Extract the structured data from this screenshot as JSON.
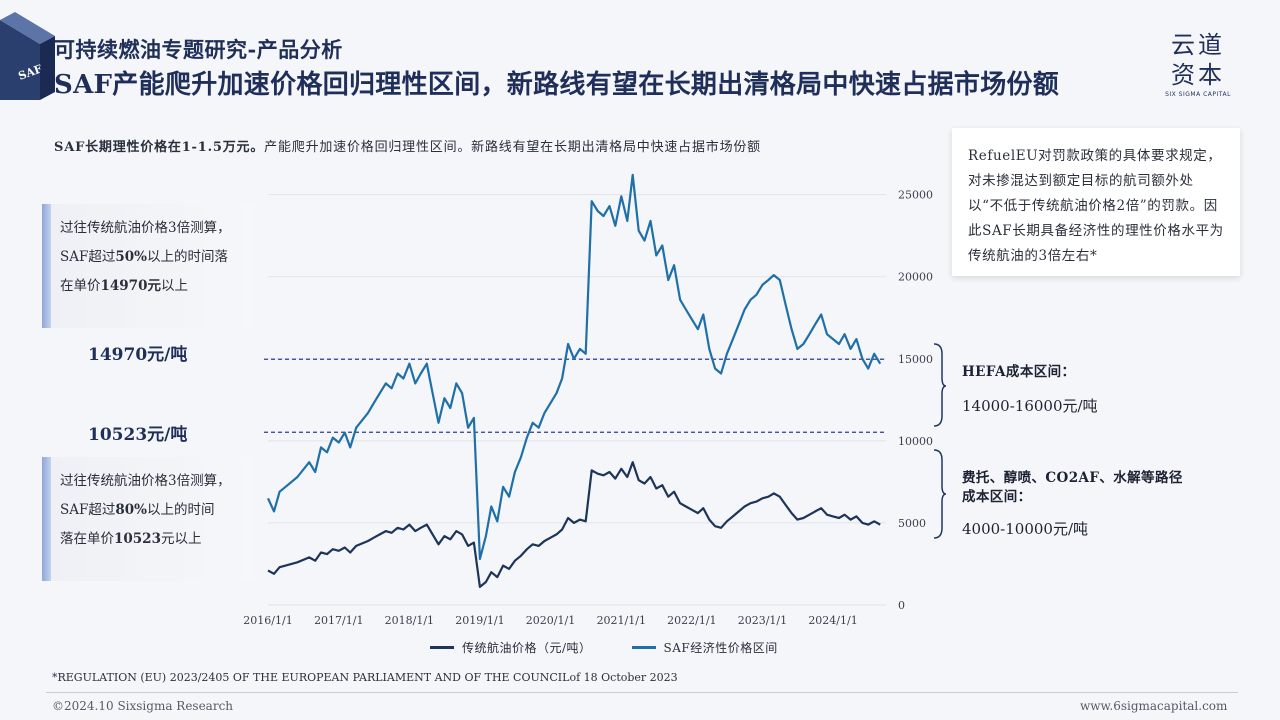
{
  "header": {
    "subtitle": "可持续燃油专题研究-产品分析",
    "title": "SAF产能爬升加速价格回归理性区间，新路线有望在长期出清格局中快速占据市场份额",
    "corner_text": "SAF"
  },
  "logo": {
    "line1": "云道",
    "line2": "资本",
    "tagline": "SIX SIGMA CAPITAL"
  },
  "lead": {
    "bold": "SAF长期理性价格在1-1.5万元。",
    "rest": "产能爬升加速价格回归理性区间。新路线有望在长期出清格局中快速占据市场份额"
  },
  "note": {
    "text": "RefuelEU对罚款政策的具体要求规定，对未掺混达到额定目标的航司额外处以“不低于传统航油价格2倍”的罚款。因此SAF长期具备经济性的理性价格水平为传统航油的3倍左右*"
  },
  "left_box_1": {
    "line1": "过往传统航油价格3倍测算，",
    "line2_a": "SAF超过",
    "line2_b": "50%",
    "line2_c": "以上的时间落",
    "line3_a": "在单价",
    "line3_b": "14970元",
    "line3_c": "以上"
  },
  "left_box_2": {
    "line1": "过往传统航油价格3倍测算，",
    "line2_a": "SAF超过",
    "line2_b": "80%",
    "line2_c": "以上的时间",
    "line3_a": "落在单价",
    "line3_b": "10523",
    "line3_c": "元以上"
  },
  "price_label_1": "14970元/吨",
  "price_label_2": "10523元/吨",
  "bracket_hefa": {
    "title": "HEFA成本区间：",
    "range": "14000-16000元/吨"
  },
  "bracket_other": {
    "title_line1": "费托、醇喷、CO2AF、水解等路径",
    "title_line2": "成本区间：",
    "range": "4000-10000元/吨"
  },
  "legend": {
    "series1": "传统航油价格（元/吨）",
    "series2": "SAF经济性价格区间"
  },
  "footnote": "*REGULATION (EU) 2023/2405 OF THE EUROPEAN PARLIAMENT AND OF THE COUNCILof 18 October 2023",
  "footer": {
    "copyright": "©2024.10 Sixsigma Research",
    "url": "www.6sigmacapital.com"
  },
  "colors": {
    "navy": "#1f3864",
    "saf_blue": "#1f6fa8",
    "jet_navy": "#1c3558",
    "dash": "#2d3e8f"
  },
  "chart_data": {
    "type": "line",
    "x_ticks": [
      "2016/1/1",
      "2017/1/1",
      "2018/1/1",
      "2019/1/1",
      "2020/1/1",
      "2021/1/1",
      "2022/1/1",
      "2023/1/1",
      "2024/1/1"
    ],
    "y_ticks": [
      0,
      5000,
      10000,
      15000,
      20000,
      25000
    ],
    "ylim": [
      0,
      26500
    ],
    "xlim": [
      "2016-01-01",
      "2024-10-01"
    ],
    "reference_lines": [
      14970,
      10523
    ],
    "series": [
      {
        "name": "传统航油价格（元/吨）",
        "color": "#1c3558",
        "points": [
          [
            "2016-01-01",
            2100
          ],
          [
            "2016-02-01",
            1900
          ],
          [
            "2016-03-01",
            2300
          ],
          [
            "2016-04-01",
            2400
          ],
          [
            "2016-06-01",
            2600
          ],
          [
            "2016-08-01",
            2900
          ],
          [
            "2016-09-01",
            2700
          ],
          [
            "2016-10-01",
            3200
          ],
          [
            "2016-11-01",
            3100
          ],
          [
            "2016-12-01",
            3400
          ],
          [
            "2017-01-01",
            3300
          ],
          [
            "2017-02-01",
            3500
          ],
          [
            "2017-03-01",
            3200
          ],
          [
            "2017-04-01",
            3600
          ],
          [
            "2017-06-01",
            3900
          ],
          [
            "2017-07-01",
            4100
          ],
          [
            "2017-08-01",
            4300
          ],
          [
            "2017-09-01",
            4500
          ],
          [
            "2017-10-01",
            4400
          ],
          [
            "2017-11-01",
            4700
          ],
          [
            "2017-12-01",
            4600
          ],
          [
            "2018-01-01",
            4900
          ],
          [
            "2018-02-01",
            4500
          ],
          [
            "2018-03-01",
            4700
          ],
          [
            "2018-04-01",
            4900
          ],
          [
            "2018-05-01",
            4300
          ],
          [
            "2018-06-01",
            3700
          ],
          [
            "2018-07-01",
            4200
          ],
          [
            "2018-08-01",
            4000
          ],
          [
            "2018-09-01",
            4500
          ],
          [
            "2018-10-01",
            4300
          ],
          [
            "2018-11-01",
            3600
          ],
          [
            "2018-12-01",
            3800
          ],
          [
            "2019-01-01",
            1100
          ],
          [
            "2019-02-01",
            1400
          ],
          [
            "2019-03-01",
            2000
          ],
          [
            "2019-04-01",
            1700
          ],
          [
            "2019-05-01",
            2400
          ],
          [
            "2019-06-01",
            2200
          ],
          [
            "2019-07-01",
            2700
          ],
          [
            "2019-08-01",
            3000
          ],
          [
            "2019-09-01",
            3400
          ],
          [
            "2019-10-01",
            3700
          ],
          [
            "2019-11-01",
            3600
          ],
          [
            "2019-12-01",
            3900
          ],
          [
            "2020-01-01",
            4100
          ],
          [
            "2020-02-01",
            4300
          ],
          [
            "2020-03-01",
            4600
          ],
          [
            "2020-04-01",
            5300
          ],
          [
            "2020-05-01",
            5000
          ],
          [
            "2020-06-01",
            5200
          ],
          [
            "2020-07-01",
            5100
          ],
          [
            "2020-08-01",
            8200
          ],
          [
            "2020-09-01",
            8000
          ],
          [
            "2020-10-01",
            7900
          ],
          [
            "2020-11-01",
            8100
          ],
          [
            "2020-12-01",
            7700
          ],
          [
            "2021-01-01",
            8300
          ],
          [
            "2021-02-01",
            7800
          ],
          [
            "2021-03-01",
            8700
          ],
          [
            "2021-04-01",
            7600
          ],
          [
            "2021-05-01",
            7400
          ],
          [
            "2021-06-01",
            7800
          ],
          [
            "2021-07-01",
            7100
          ],
          [
            "2021-08-01",
            7300
          ],
          [
            "2021-09-01",
            6600
          ],
          [
            "2021-10-01",
            6900
          ],
          [
            "2021-11-01",
            6200
          ],
          [
            "2021-12-01",
            6000
          ],
          [
            "2022-01-01",
            5800
          ],
          [
            "2022-02-01",
            5600
          ],
          [
            "2022-03-01",
            5900
          ],
          [
            "2022-04-01",
            5200
          ],
          [
            "2022-05-01",
            4800
          ],
          [
            "2022-06-01",
            4700
          ],
          [
            "2022-07-01",
            5100
          ],
          [
            "2022-08-01",
            5400
          ],
          [
            "2022-09-01",
            5700
          ],
          [
            "2022-10-01",
            6000
          ],
          [
            "2022-11-01",
            6200
          ],
          [
            "2022-12-01",
            6300
          ],
          [
            "2023-01-01",
            6500
          ],
          [
            "2023-02-01",
            6600
          ],
          [
            "2023-03-01",
            6800
          ],
          [
            "2023-04-01",
            6600
          ],
          [
            "2023-05-01",
            6100
          ],
          [
            "2023-06-01",
            5600
          ],
          [
            "2023-07-01",
            5200
          ],
          [
            "2023-08-01",
            5300
          ],
          [
            "2023-09-01",
            5500
          ],
          [
            "2023-10-01",
            5700
          ],
          [
            "2023-11-01",
            5900
          ],
          [
            "2023-12-01",
            5500
          ],
          [
            "2024-01-01",
            5400
          ],
          [
            "2024-02-01",
            5300
          ],
          [
            "2024-03-01",
            5500
          ],
          [
            "2024-04-01",
            5200
          ],
          [
            "2024-05-01",
            5400
          ],
          [
            "2024-06-01",
            5000
          ],
          [
            "2024-07-01",
            4900
          ],
          [
            "2024-08-01",
            5100
          ],
          [
            "2024-09-01",
            4900
          ]
        ]
      },
      {
        "name": "SAF经济性价格区间",
        "color": "#1f6fa8",
        "points": [
          [
            "2016-01-01",
            6500
          ],
          [
            "2016-02-01",
            5700
          ],
          [
            "2016-03-01",
            6900
          ],
          [
            "2016-04-01",
            7200
          ],
          [
            "2016-06-01",
            7800
          ],
          [
            "2016-08-01",
            8700
          ],
          [
            "2016-09-01",
            8100
          ],
          [
            "2016-10-01",
            9600
          ],
          [
            "2016-11-01",
            9300
          ],
          [
            "2016-12-01",
            10200
          ],
          [
            "2017-01-01",
            9900
          ],
          [
            "2017-02-01",
            10500
          ],
          [
            "2017-03-01",
            9600
          ],
          [
            "2017-04-01",
            10800
          ],
          [
            "2017-06-01",
            11700
          ],
          [
            "2017-07-01",
            12300
          ],
          [
            "2017-08-01",
            12900
          ],
          [
            "2017-09-01",
            13500
          ],
          [
            "2017-10-01",
            13200
          ],
          [
            "2017-11-01",
            14100
          ],
          [
            "2017-12-01",
            13800
          ],
          [
            "2018-01-01",
            14700
          ],
          [
            "2018-02-01",
            13500
          ],
          [
            "2018-03-01",
            14100
          ],
          [
            "2018-04-01",
            14700
          ],
          [
            "2018-05-01",
            12900
          ],
          [
            "2018-06-01",
            11100
          ],
          [
            "2018-07-01",
            12600
          ],
          [
            "2018-08-01",
            12000
          ],
          [
            "2018-09-01",
            13500
          ],
          [
            "2018-10-01",
            12900
          ],
          [
            "2018-11-01",
            10800
          ],
          [
            "2018-12-01",
            11400
          ],
          [
            "2019-01-01",
            2800
          ],
          [
            "2019-02-01",
            4200
          ],
          [
            "2019-03-01",
            6000
          ],
          [
            "2019-04-01",
            5100
          ],
          [
            "2019-05-01",
            7200
          ],
          [
            "2019-06-01",
            6600
          ],
          [
            "2019-07-01",
            8100
          ],
          [
            "2019-08-01",
            9000
          ],
          [
            "2019-09-01",
            10200
          ],
          [
            "2019-10-01",
            11100
          ],
          [
            "2019-11-01",
            10800
          ],
          [
            "2019-12-01",
            11700
          ],
          [
            "2020-01-01",
            12300
          ],
          [
            "2020-02-01",
            12900
          ],
          [
            "2020-03-01",
            13800
          ],
          [
            "2020-04-01",
            15900
          ],
          [
            "2020-05-01",
            15000
          ],
          [
            "2020-06-01",
            15600
          ],
          [
            "2020-07-01",
            15300
          ],
          [
            "2020-08-01",
            24600
          ],
          [
            "2020-09-01",
            24000
          ],
          [
            "2020-10-01",
            23700
          ],
          [
            "2020-11-01",
            24300
          ],
          [
            "2020-12-01",
            23100
          ],
          [
            "2021-01-01",
            24900
          ],
          [
            "2021-02-01",
            23400
          ],
          [
            "2021-03-01",
            26200
          ],
          [
            "2021-04-01",
            22800
          ],
          [
            "2021-05-01",
            22200
          ],
          [
            "2021-06-01",
            23400
          ],
          [
            "2021-07-01",
            21300
          ],
          [
            "2021-08-01",
            21900
          ],
          [
            "2021-09-01",
            19800
          ],
          [
            "2021-10-01",
            20700
          ],
          [
            "2021-11-01",
            18600
          ],
          [
            "2021-12-01",
            18000
          ],
          [
            "2022-01-01",
            17400
          ],
          [
            "2022-02-01",
            16800
          ],
          [
            "2022-03-01",
            17700
          ],
          [
            "2022-04-01",
            15600
          ],
          [
            "2022-05-01",
            14400
          ],
          [
            "2022-06-01",
            14100
          ],
          [
            "2022-07-01",
            15300
          ],
          [
            "2022-08-01",
            16200
          ],
          [
            "2022-09-01",
            17100
          ],
          [
            "2022-10-01",
            18000
          ],
          [
            "2022-11-01",
            18600
          ],
          [
            "2022-12-01",
            18900
          ],
          [
            "2023-01-01",
            19500
          ],
          [
            "2023-02-01",
            19800
          ],
          [
            "2023-03-01",
            20100
          ],
          [
            "2023-04-01",
            19800
          ],
          [
            "2023-05-01",
            18300
          ],
          [
            "2023-06-01",
            16800
          ],
          [
            "2023-07-01",
            15600
          ],
          [
            "2023-08-01",
            15900
          ],
          [
            "2023-09-01",
            16500
          ],
          [
            "2023-10-01",
            17100
          ],
          [
            "2023-11-01",
            17700
          ],
          [
            "2023-12-01",
            16500
          ],
          [
            "2024-01-01",
            16200
          ],
          [
            "2024-02-01",
            15900
          ],
          [
            "2024-03-01",
            16500
          ],
          [
            "2024-04-01",
            15600
          ],
          [
            "2024-05-01",
            16200
          ],
          [
            "2024-06-01",
            15000
          ],
          [
            "2024-07-01",
            14400
          ],
          [
            "2024-08-01",
            15300
          ],
          [
            "2024-09-01",
            14700
          ]
        ]
      }
    ]
  }
}
